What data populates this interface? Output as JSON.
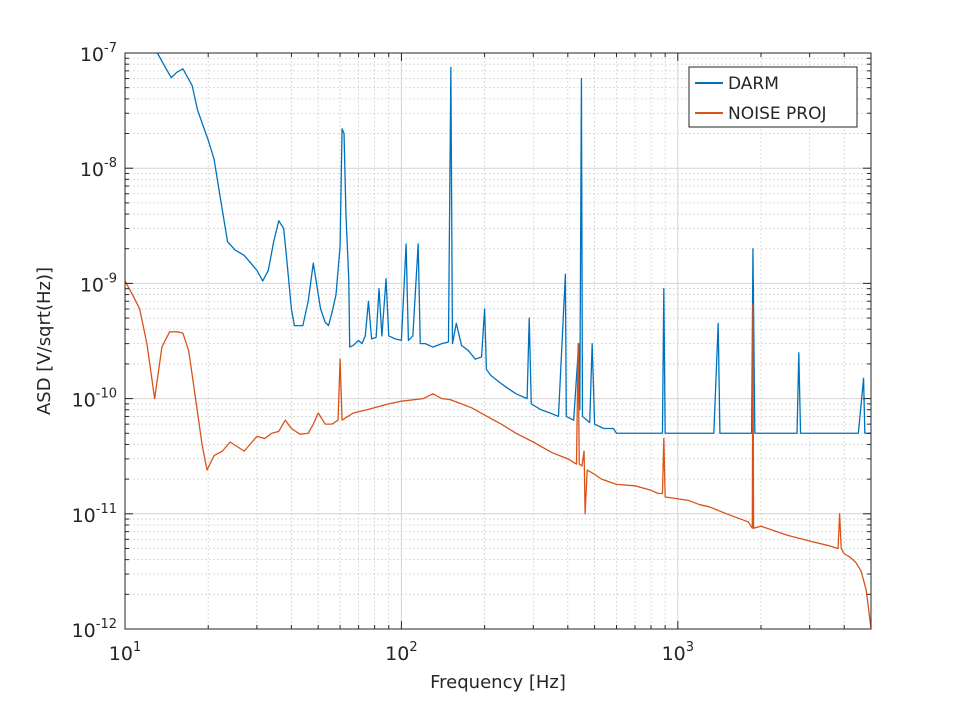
{
  "chart_data": {
    "type": "line",
    "title": "",
    "xlabel": "Frequency [Hz]",
    "ylabel": "ASD [V/sqrt(Hz)]",
    "x_scale": "log",
    "y_scale": "log",
    "xlim": [
      10,
      5000
    ],
    "ylim": [
      1e-12,
      1e-07
    ],
    "grid": true,
    "legend_position": "top-right",
    "x_ticks": [
      {
        "value": 10,
        "label": "10",
        "exp": "1"
      },
      {
        "value": 100,
        "label": "10",
        "exp": "2"
      },
      {
        "value": 1000,
        "label": "10",
        "exp": "3"
      }
    ],
    "y_ticks": [
      {
        "value": 1e-12,
        "label": "10",
        "exp": "-12"
      },
      {
        "value": 1e-11,
        "label": "10",
        "exp": "-11"
      },
      {
        "value": 1e-10,
        "label": "10",
        "exp": "-10"
      },
      {
        "value": 1e-09,
        "label": "10",
        "exp": "-9"
      },
      {
        "value": 1e-08,
        "label": "10",
        "exp": "-8"
      },
      {
        "value": 1e-07,
        "label": "10",
        "exp": "-7"
      }
    ],
    "series": [
      {
        "name": "DARM",
        "color": "#0072bd",
        "points": [
          [
            13.1,
            1e-07
          ],
          [
            14.0,
            7.5e-08
          ],
          [
            14.7,
            6.1e-08
          ],
          [
            15.4,
            6.8e-08
          ],
          [
            16.2,
            7.3e-08
          ],
          [
            17.5,
            5.2e-08
          ],
          [
            18.3,
            3.2e-08
          ],
          [
            20.0,
            1.75e-08
          ],
          [
            21.0,
            1.2e-08
          ],
          [
            22.0,
            6e-09
          ],
          [
            23.5,
            2.3e-09
          ],
          [
            25.0,
            1.95e-09
          ],
          [
            27.0,
            1.75e-09
          ],
          [
            30.0,
            1.3e-09
          ],
          [
            31.5,
            1.05e-09
          ],
          [
            33.0,
            1.3e-09
          ],
          [
            34.5,
            2.3e-09
          ],
          [
            36.0,
            3.5e-09
          ],
          [
            37.5,
            3e-09
          ],
          [
            38.5,
            1.6e-09
          ],
          [
            40.0,
            6e-10
          ],
          [
            41.0,
            4.3e-10
          ],
          [
            44.0,
            4.3e-10
          ],
          [
            46.0,
            7e-10
          ],
          [
            48.0,
            1.5e-09
          ],
          [
            49.0,
            1.1e-09
          ],
          [
            51.0,
            6e-10
          ],
          [
            53.0,
            4.6e-10
          ],
          [
            54.5,
            4.3e-10
          ],
          [
            56.0,
            5.5e-10
          ],
          [
            58.0,
            8e-10
          ],
          [
            60.0,
            2.1e-09
          ],
          [
            61.0,
            2.2e-08
          ],
          [
            62.0,
            2e-08
          ],
          [
            63.0,
            4e-09
          ],
          [
            64.5,
            1.1e-09
          ],
          [
            65.0,
            2.8e-10
          ],
          [
            67.0,
            2.9e-10
          ],
          [
            70.0,
            3.2e-10
          ],
          [
            72.0,
            3e-10
          ],
          [
            74.0,
            3.5e-10
          ],
          [
            76.0,
            7e-10
          ],
          [
            78.0,
            3.3e-10
          ],
          [
            81.0,
            3.4e-10
          ],
          [
            83.0,
            9e-10
          ],
          [
            85.0,
            3.5e-10
          ],
          [
            88.0,
            1.1e-09
          ],
          [
            90.0,
            3.5e-10
          ],
          [
            95.0,
            3.3e-10
          ],
          [
            100.0,
            3.2e-10
          ],
          [
            104.0,
            2.2e-09
          ],
          [
            106.0,
            3.2e-10
          ],
          [
            110.0,
            3.5e-10
          ],
          [
            115.0,
            2.2e-09
          ],
          [
            117.0,
            3e-10
          ],
          [
            122.0,
            3e-10
          ],
          [
            130.0,
            2.8e-10
          ],
          [
            140.0,
            3e-10
          ],
          [
            148.0,
            3.1e-10
          ],
          [
            151.0,
            7.5e-08
          ],
          [
            153.0,
            3e-10
          ],
          [
            158.0,
            4.5e-10
          ],
          [
            165.0,
            2.9e-10
          ],
          [
            175.0,
            2.6e-10
          ],
          [
            185.0,
            2.2e-10
          ],
          [
            195.0,
            2.3e-10
          ],
          [
            200.0,
            6e-10
          ],
          [
            203.0,
            1.8e-10
          ],
          [
            210.0,
            1.6e-10
          ],
          [
            225.0,
            1.4e-10
          ],
          [
            240.0,
            1.25e-10
          ],
          [
            260.0,
            1.1e-10
          ],
          [
            285.0,
            1e-10
          ],
          [
            290.0,
            5e-10
          ],
          [
            295.0,
            9e-11
          ],
          [
            320.0,
            8e-11
          ],
          [
            345.0,
            7.5e-11
          ],
          [
            370.0,
            7e-11
          ],
          [
            392.0,
            1.2e-09
          ],
          [
            395.0,
            7e-11
          ],
          [
            420.0,
            6.5e-11
          ],
          [
            438.0,
            3e-10
          ],
          [
            442.0,
            8e-11
          ],
          [
            448.0,
            6e-08
          ],
          [
            452.0,
            7e-11
          ],
          [
            480.0,
            6.2e-11
          ],
          [
            490.0,
            3e-10
          ],
          [
            500.0,
            6e-11
          ],
          [
            540.0,
            5.5e-11
          ],
          [
            585.0,
            5.5e-11
          ],
          [
            600.0,
            5e-11
          ],
          [
            630.0,
            5e-11
          ],
          [
            700.0,
            5e-11
          ],
          [
            800.0,
            5e-11
          ],
          [
            880.0,
            5e-11
          ],
          [
            890.0,
            9e-10
          ],
          [
            900.0,
            5e-11
          ],
          [
            1000.0,
            5e-11
          ],
          [
            1200.0,
            5e-11
          ],
          [
            1350.0,
            5e-11
          ],
          [
            1400.0,
            4.5e-10
          ],
          [
            1420.0,
            5e-11
          ],
          [
            1600.0,
            5e-11
          ],
          [
            1850.0,
            5e-11
          ],
          [
            1870.0,
            2e-09
          ],
          [
            1900.0,
            5e-11
          ],
          [
            2200.0,
            5e-11
          ],
          [
            2700.0,
            5e-11
          ],
          [
            2740.0,
            2.5e-10
          ],
          [
            2780.0,
            5e-11
          ],
          [
            3200.0,
            5e-11
          ],
          [
            3600.0,
            5e-11
          ],
          [
            4000.0,
            5e-11
          ],
          [
            4500.0,
            5e-11
          ],
          [
            4700.0,
            1.5e-10
          ],
          [
            4750.0,
            5e-11
          ],
          [
            5000.0,
            5e-11
          ]
        ]
      },
      {
        "name": "NOISE PROJ",
        "color": "#d95319",
        "points": [
          [
            10.0,
            1.05e-09
          ],
          [
            10.7,
            7.8e-10
          ],
          [
            11.3,
            6e-10
          ],
          [
            12.0,
            3e-10
          ],
          [
            12.8,
            1e-10
          ],
          [
            13.6,
            2.8e-10
          ],
          [
            14.5,
            3.8e-10
          ],
          [
            15.5,
            3.8e-10
          ],
          [
            16.2,
            3.7e-10
          ],
          [
            17.0,
            2.6e-10
          ],
          [
            18.0,
            1e-10
          ],
          [
            19.0,
            4e-11
          ],
          [
            19.8,
            2.4e-11
          ],
          [
            21.0,
            3.2e-11
          ],
          [
            22.5,
            3.5e-11
          ],
          [
            24.0,
            4.2e-11
          ],
          [
            27.0,
            3.5e-11
          ],
          [
            30.0,
            4.7e-11
          ],
          [
            32.0,
            4.5e-11
          ],
          [
            34.0,
            5e-11
          ],
          [
            36.0,
            5.2e-11
          ],
          [
            38.0,
            6.5e-11
          ],
          [
            40.0,
            5.5e-11
          ],
          [
            43.0,
            4.9e-11
          ],
          [
            46.0,
            5e-11
          ],
          [
            48.0,
            6e-11
          ],
          [
            50.0,
            7.5e-11
          ],
          [
            53.0,
            6e-11
          ],
          [
            56.0,
            6e-11
          ],
          [
            59.0,
            6.5e-11
          ],
          [
            60.0,
            2.2e-10
          ],
          [
            61.0,
            6.5e-11
          ],
          [
            64.0,
            7e-11
          ],
          [
            67.0,
            7.5e-11
          ],
          [
            75.0,
            8e-11
          ],
          [
            90.0,
            9e-11
          ],
          [
            100.0,
            9.5e-11
          ],
          [
            120.0,
            1e-10
          ],
          [
            130.0,
            1.1e-10
          ],
          [
            140.0,
            1e-10
          ],
          [
            150.0,
            9.8e-11
          ],
          [
            165.0,
            9e-11
          ],
          [
            180.0,
            8.3e-11
          ],
          [
            200.0,
            7.2e-11
          ],
          [
            230.0,
            6e-11
          ],
          [
            260.0,
            5e-11
          ],
          [
            300.0,
            4.2e-11
          ],
          [
            350.0,
            3.4e-11
          ],
          [
            400.0,
            3e-11
          ],
          [
            430.0,
            2.7e-11
          ],
          [
            436.0,
            3e-10
          ],
          [
            440.0,
            2.7e-11
          ],
          [
            450.0,
            2.6e-11
          ],
          [
            458.0,
            3.5e-11
          ],
          [
            462.0,
            1e-11
          ],
          [
            470.0,
            2.4e-11
          ],
          [
            500.0,
            2.2e-11
          ],
          [
            530.0,
            2e-11
          ],
          [
            600.0,
            1.8e-11
          ],
          [
            700.0,
            1.75e-11
          ],
          [
            800.0,
            1.6e-11
          ],
          [
            850.0,
            1.5e-11
          ],
          [
            880.0,
            1.5e-11
          ],
          [
            890.0,
            4.5e-11
          ],
          [
            900.0,
            1.4e-11
          ],
          [
            1000.0,
            1.35e-11
          ],
          [
            1100.0,
            1.3e-11
          ],
          [
            1200.0,
            1.2e-11
          ],
          [
            1300.0,
            1.15e-11
          ],
          [
            1500.0,
            1e-11
          ],
          [
            1800.0,
            8.5e-12
          ],
          [
            1860.0,
            7.5e-12
          ],
          [
            1870.0,
            6.5e-10
          ],
          [
            1880.0,
            7.5e-12
          ],
          [
            2000.0,
            7.8e-12
          ],
          [
            2500.0,
            6.5e-12
          ],
          [
            3000.0,
            5.8e-12
          ],
          [
            3500.0,
            5.3e-12
          ],
          [
            3800.0,
            5e-12
          ],
          [
            3850.0,
            1e-11
          ],
          [
            3900.0,
            5e-12
          ],
          [
            4000.0,
            4.5e-12
          ],
          [
            4200.0,
            4.2e-12
          ],
          [
            4400.0,
            3.8e-12
          ],
          [
            4600.0,
            3.2e-12
          ],
          [
            4800.0,
            2.2e-12
          ],
          [
            4900.0,
            1.5e-12
          ],
          [
            5000.0,
            1e-12
          ]
        ]
      }
    ]
  },
  "colors": {
    "axis": "#262626",
    "grid": "#d3d3d3",
    "background": "#ffffff"
  }
}
